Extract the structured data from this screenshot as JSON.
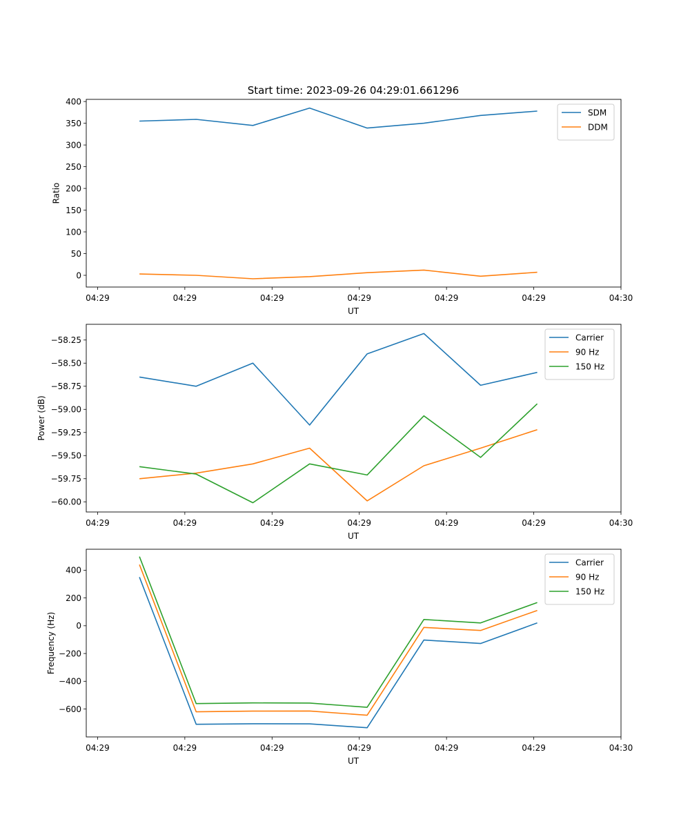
{
  "figure_title": "Start time: 2023-09-26 04:29:01.661296",
  "chart_data": [
    {
      "type": "line",
      "title": "Start time: 2023-09-26 04:29:01.661296",
      "xlabel": "UT",
      "ylabel": "Ratio",
      "x_ticks": [
        "04:29",
        "04:29",
        "04:29",
        "04:29",
        "04:29",
        "04:29",
        "04:30"
      ],
      "x_tick_positions": [
        0,
        1,
        2,
        3,
        4,
        5,
        6
      ],
      "x": [
        0.48,
        1.13,
        1.78,
        2.43,
        3.09,
        3.74,
        4.39,
        5.04
      ],
      "xlim": [
        -0.13,
        6
      ],
      "ylim": [
        -27,
        405
      ],
      "y_ticks": [
        0,
        50,
        100,
        150,
        200,
        250,
        300,
        350,
        400
      ],
      "y_tick_labels": [
        "0",
        "50",
        "100",
        "150",
        "200",
        "250",
        "300",
        "350",
        "400"
      ],
      "legend_position": "upper right",
      "series": [
        {
          "name": "SDM",
          "color": "#1f77b4",
          "values": [
            355,
            359,
            345,
            385,
            339,
            350,
            368,
            378
          ]
        },
        {
          "name": "DDM",
          "color": "#ff7f0e",
          "values": [
            3,
            0,
            -8,
            -3,
            6,
            12,
            -2,
            7
          ]
        }
      ]
    },
    {
      "type": "line",
      "title": "",
      "xlabel": "UT",
      "ylabel": "Power (dB)",
      "x_ticks": [
        "04:29",
        "04:29",
        "04:29",
        "04:29",
        "04:29",
        "04:29",
        "04:30"
      ],
      "x_tick_positions": [
        0,
        1,
        2,
        3,
        4,
        5,
        6
      ],
      "x": [
        0.48,
        1.13,
        1.78,
        2.43,
        3.09,
        3.74,
        4.39,
        5.04
      ],
      "xlim": [
        -0.13,
        6
      ],
      "ylim": [
        -60.11,
        -58.08
      ],
      "y_ticks": [
        -60.0,
        -59.75,
        -59.5,
        -59.25,
        -59.0,
        -58.75,
        -58.5,
        -58.25
      ],
      "y_tick_labels": [
        "−60.00",
        "−59.75",
        "−59.50",
        "−59.25",
        "−59.00",
        "−58.75",
        "−58.50",
        "−58.25"
      ],
      "legend_position": "upper right",
      "series": [
        {
          "name": "Carrier",
          "color": "#1f77b4",
          "values": [
            -58.65,
            -58.75,
            -58.5,
            -59.17,
            -58.4,
            -58.18,
            -58.74,
            -58.6
          ]
        },
        {
          "name": "90 Hz",
          "color": "#ff7f0e",
          "values": [
            -59.75,
            -59.69,
            -59.59,
            -59.42,
            -59.99,
            -59.61,
            -59.42,
            -59.22
          ]
        },
        {
          "name": "150 Hz",
          "color": "#2ca02c",
          "values": [
            -59.62,
            -59.7,
            -60.01,
            -59.59,
            -59.71,
            -59.07,
            -59.52,
            -58.94
          ]
        }
      ]
    },
    {
      "type": "line",
      "title": "",
      "xlabel": "UT",
      "ylabel": "Frequency (Hz)",
      "x_ticks": [
        "04:29",
        "04:29",
        "04:29",
        "04:29",
        "04:29",
        "04:29",
        "04:30"
      ],
      "x_tick_positions": [
        0,
        1,
        2,
        3,
        4,
        5,
        6
      ],
      "x": [
        0.48,
        1.13,
        1.78,
        2.43,
        3.09,
        3.74,
        4.39,
        5.04
      ],
      "xlim": [
        -0.13,
        6
      ],
      "ylim": [
        -801,
        551
      ],
      "y_ticks": [
        -600,
        -400,
        -200,
        0,
        200,
        400
      ],
      "y_tick_labels": [
        "−600",
        "−400",
        "−200",
        "0",
        "200",
        "400"
      ],
      "legend_position": "upper right",
      "series": [
        {
          "name": "Carrier",
          "color": "#1f77b4",
          "values": [
            350,
            -710,
            -706,
            -707,
            -735,
            -103,
            -128,
            20
          ]
        },
        {
          "name": "90 Hz",
          "color": "#ff7f0e",
          "values": [
            440,
            -620,
            -615,
            -614,
            -645,
            -12,
            -34,
            110
          ]
        },
        {
          "name": "150 Hz",
          "color": "#2ca02c",
          "values": [
            498,
            -561,
            -556,
            -557,
            -588,
            45,
            20,
            167
          ]
        }
      ]
    }
  ]
}
